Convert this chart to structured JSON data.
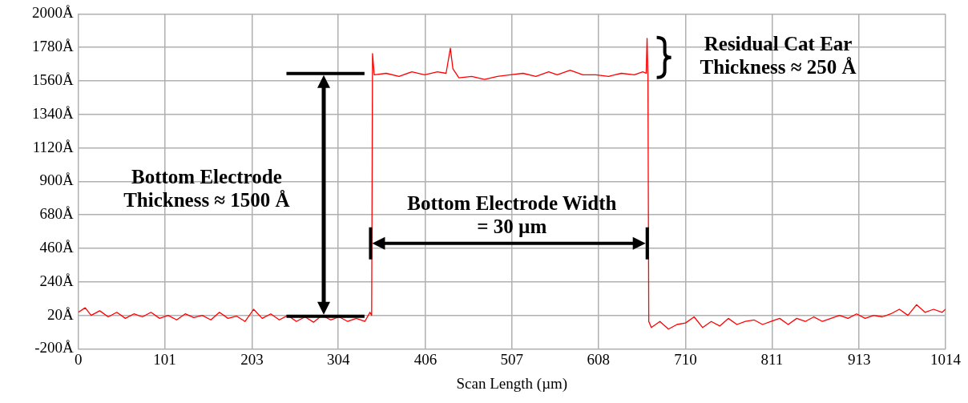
{
  "chart_data": {
    "type": "line",
    "xlabel": "Scan Length (µm)",
    "xlim": [
      0,
      1014
    ],
    "xticks": [
      0,
      101,
      203,
      304,
      406,
      507,
      608,
      710,
      811,
      913,
      1014
    ],
    "ylim": [
      -200,
      2000
    ],
    "yticks": [
      {
        "value": -200,
        "label": "-200Å"
      },
      {
        "value": 20,
        "label": "20Å"
      },
      {
        "value": 240,
        "label": "240Å"
      },
      {
        "value": 460,
        "label": "460Å"
      },
      {
        "value": 680,
        "label": "680Å"
      },
      {
        "value": 900,
        "label": "900Å"
      },
      {
        "value": 1120,
        "label": "1120Å"
      },
      {
        "value": 1340,
        "label": "1340Å"
      },
      {
        "value": 1560,
        "label": "1560Å"
      },
      {
        "value": 1780,
        "label": "1780Å"
      },
      {
        "value": 2000,
        "label": "2000Å"
      }
    ],
    "grid": true,
    "legend": false,
    "marker": "none",
    "line_style": "solid",
    "series": [
      {
        "color": "#ff0000",
        "x": [
          0,
          8,
          15,
          25,
          35,
          45,
          55,
          65,
          75,
          85,
          95,
          105,
          115,
          125,
          135,
          145,
          155,
          165,
          175,
          185,
          195,
          205,
          215,
          225,
          235,
          245,
          255,
          265,
          275,
          285,
          295,
          305,
          315,
          325,
          335,
          341,
          343,
          344,
          346,
          360,
          375,
          390,
          405,
          420,
          430,
          435,
          438,
          445,
          460,
          475,
          490,
          505,
          520,
          535,
          550,
          560,
          575,
          590,
          605,
          620,
          635,
          650,
          660,
          664,
          665,
          666,
          667,
          670,
          680,
          690,
          700,
          710,
          720,
          730,
          740,
          750,
          760,
          770,
          780,
          790,
          800,
          810,
          820,
          830,
          840,
          850,
          860,
          870,
          880,
          890,
          900,
          910,
          920,
          930,
          940,
          950,
          960,
          970,
          980,
          990,
          1000,
          1010,
          1014
        ],
        "values": [
          40,
          70,
          20,
          50,
          10,
          40,
          0,
          30,
          10,
          40,
          0,
          20,
          -10,
          30,
          5,
          20,
          -10,
          40,
          0,
          15,
          -20,
          60,
          0,
          30,
          -10,
          20,
          -20,
          10,
          -25,
          20,
          -10,
          10,
          -20,
          0,
          -20,
          40,
          20,
          1740,
          1600,
          1610,
          1590,
          1620,
          1600,
          1620,
          1610,
          1775,
          1640,
          1580,
          1590,
          1570,
          1590,
          1600,
          1610,
          1590,
          1620,
          1600,
          1630,
          1600,
          1600,
          1590,
          1610,
          1600,
          1620,
          1610,
          1840,
          1600,
          -20,
          -60,
          -20,
          -70,
          -40,
          -30,
          10,
          -60,
          -20,
          -50,
          0,
          -40,
          -20,
          -10,
          -40,
          -20,
          0,
          -40,
          0,
          -20,
          10,
          -20,
          0,
          20,
          0,
          30,
          0,
          20,
          10,
          30,
          60,
          20,
          90,
          40,
          60,
          40,
          60
        ]
      }
    ],
    "annotations": [
      "Bottom Electrode Thickness ≈ 1500 Å",
      "Bottom Electrode Width = 30 µm",
      "Residual Cat Ear Thickness ≈ 250 Å"
    ]
  }
}
